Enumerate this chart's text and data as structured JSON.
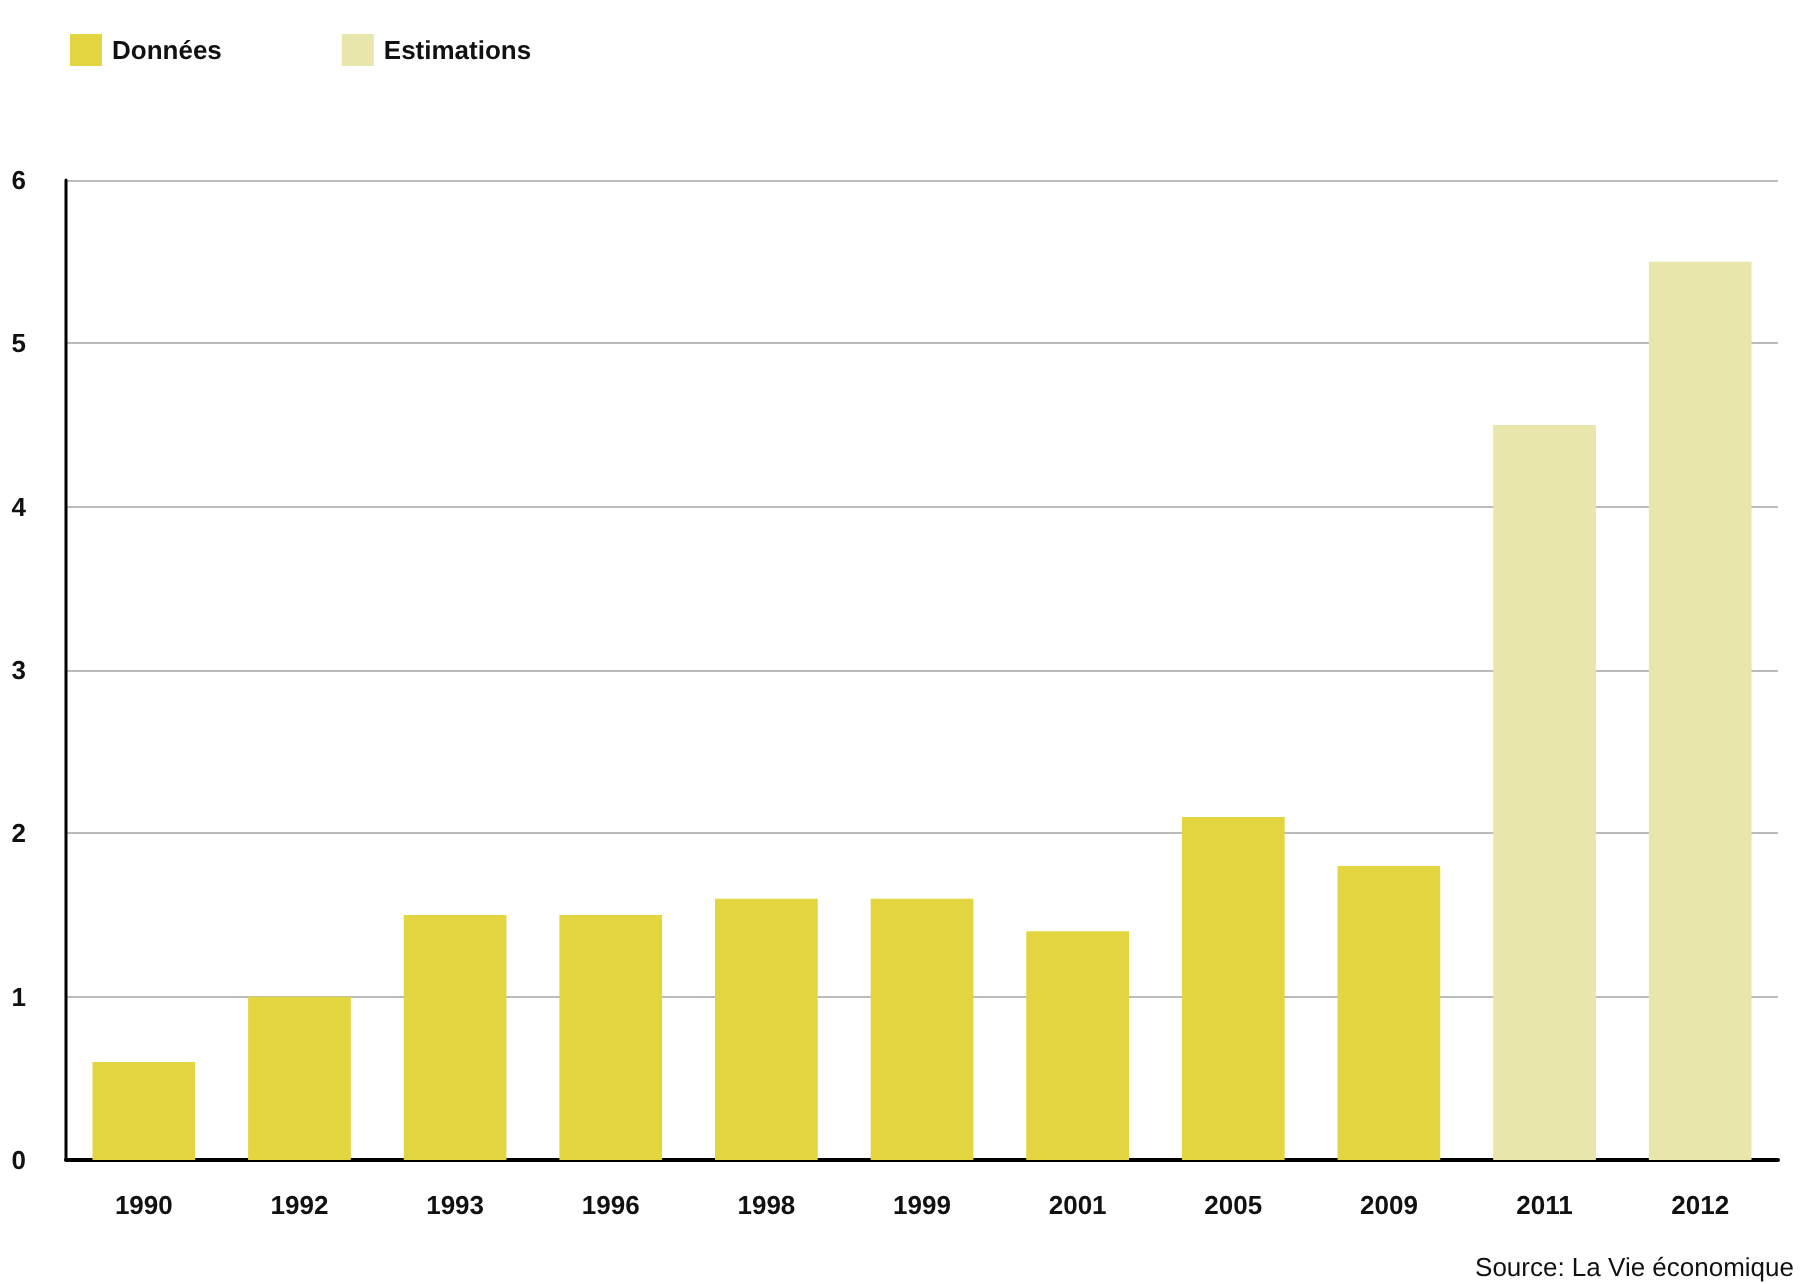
{
  "chart_data": {
    "type": "bar",
    "categories": [
      "1990",
      "1992",
      "1993",
      "1996",
      "1998",
      "1999",
      "2001",
      "2005",
      "2009",
      "2011",
      "2012"
    ],
    "series": [
      {
        "name": "Données",
        "color": "#e3d53f",
        "values": [
          0.6,
          1.0,
          1.5,
          1.5,
          1.6,
          1.6,
          1.4,
          2.1,
          1.8,
          null,
          null
        ]
      },
      {
        "name": "Estimations",
        "color": "#e8e6aa",
        "values": [
          null,
          null,
          null,
          null,
          null,
          null,
          null,
          null,
          null,
          4.5,
          5.5
        ]
      }
    ],
    "stacked": true,
    "ylim": [
      0,
      6
    ],
    "yticks": [
      0,
      1,
      2,
      3,
      4,
      5,
      6
    ],
    "grid": "y",
    "legend": "top left",
    "annotations": [
      "Source: La Vie économique"
    ]
  }
}
